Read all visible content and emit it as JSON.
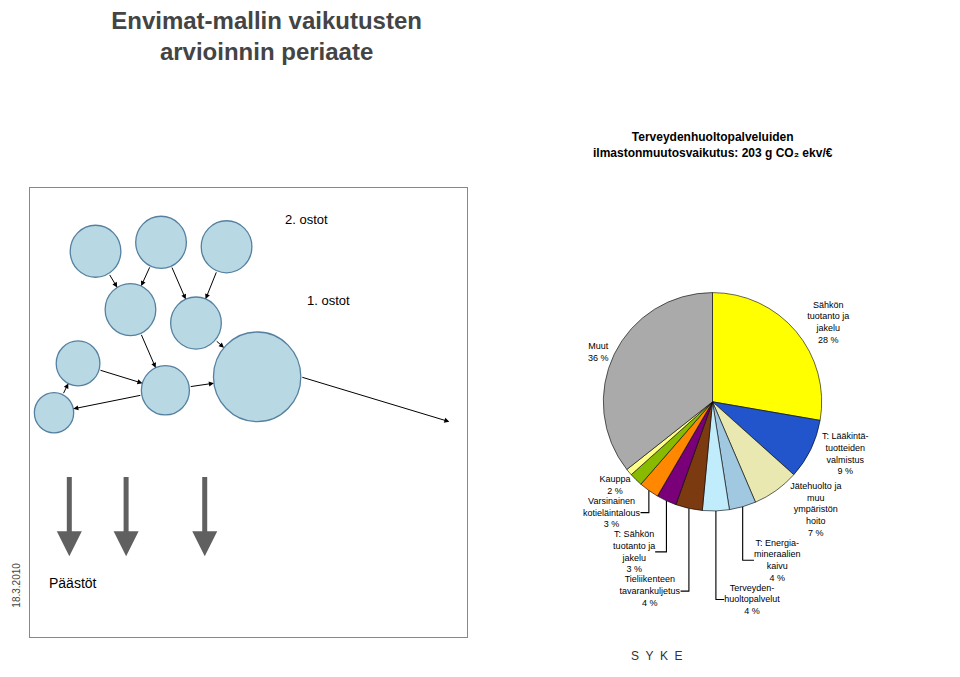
{
  "chart_data": {
    "type": "pie",
    "title": "Envimat-mallin vaikutusten\narvioinnin periaate",
    "subtitle": "Terveydenhuoltopalveluiden\nilmastonmuutosvaikutus: 203 g CO₂ ekv/€",
    "annotations": [
      "2. ostot",
      "1. ostot",
      "Päästöt",
      "18.3.2010",
      "S  Y  K  E"
    ],
    "categories": [
      "Sähkön\ntuotanto ja\njakelu\n28 %",
      "T: Lääkintä-\ntuotteiden\nvalmistus\n9 %",
      "Jätehuolto ja\nmuu\nympäristön\nhoito\n7 %",
      "T: Energia-\nmineraalien\nkaivu\n4 %",
      "Terveyden-\nhuoltopalvelut\n4 %",
      "Tieliikenteen\ntavarankuljetus\n4 %",
      "T: Sähkön\ntuotanto ja\njakelu\n3 %",
      "Varsinainen\nkotieläintalous\n3 %",
      "Kauppa\n2 %",
      null,
      "Muut\n36 %"
    ],
    "values": [
      28,
      9,
      7,
      4,
      4,
      4,
      3,
      3,
      2,
      1,
      36
    ],
    "colors": [
      "#ffff00",
      "#2255cc",
      "#e8e8b0",
      "#a0c8e0",
      "#c0ecfc",
      "#7b3a10",
      "#7a007a",
      "#ff8800",
      "#88bb00",
      "#ffff88",
      "#aaaaaa"
    ]
  }
}
